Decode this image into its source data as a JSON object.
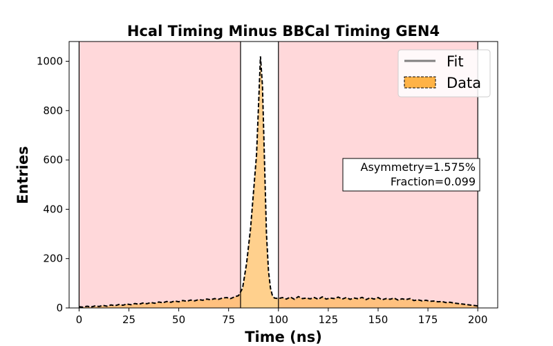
{
  "chart_data": {
    "type": "area",
    "title": "Hcal Timing Minus BBCal Timing GEN4",
    "xlabel": "Time (ns)",
    "ylabel": "Entries",
    "xlim": [
      -5,
      210
    ],
    "ylim": [
      0,
      1080
    ],
    "xticks": [
      0,
      25,
      50,
      75,
      100,
      125,
      150,
      175,
      200
    ],
    "yticks": [
      0,
      200,
      400,
      600,
      800,
      1000
    ],
    "grid": false,
    "legend": {
      "placement": "top-right",
      "entries": [
        {
          "label": "Fit",
          "style": "line",
          "color": "#808080"
        },
        {
          "label": "Data",
          "style": "filled-dashed",
          "color": "#ffb347"
        }
      ]
    },
    "shaded_regions": [
      {
        "x": [
          0,
          81
        ],
        "color": "#ffd8da"
      },
      {
        "x": [
          100,
          200
        ],
        "color": "#ffd8da"
      }
    ],
    "boundary_lines": [
      0,
      81,
      100,
      200
    ],
    "annotation": [
      "Asymmetry=1.575%",
      "Fraction=0.099"
    ],
    "series": [
      {
        "name": "Data",
        "x": [
          0,
          2,
          4,
          6,
          8,
          10,
          12,
          14,
          16,
          18,
          20,
          22,
          24,
          26,
          28,
          30,
          32,
          34,
          36,
          38,
          40,
          42,
          44,
          46,
          48,
          50,
          52,
          54,
          56,
          58,
          60,
          62,
          64,
          66,
          68,
          70,
          72,
          74,
          76,
          78,
          80,
          82,
          84,
          86,
          87,
          88,
          89,
          90,
          91,
          92,
          93,
          94,
          95,
          96,
          97,
          98,
          100,
          102,
          104,
          106,
          108,
          110,
          112,
          114,
          116,
          118,
          120,
          122,
          124,
          126,
          128,
          130,
          132,
          134,
          136,
          138,
          140,
          142,
          144,
          146,
          148,
          150,
          152,
          154,
          156,
          158,
          160,
          162,
          164,
          166,
          168,
          170,
          172,
          174,
          176,
          178,
          180,
          182,
          184,
          186,
          188,
          190,
          192,
          194,
          196,
          198,
          200
        ],
        "values": [
          5,
          3,
          7,
          4,
          8,
          6,
          10,
          7,
          12,
          9,
          14,
          11,
          16,
          13,
          18,
          15,
          20,
          17,
          22,
          19,
          24,
          21,
          26,
          23,
          28,
          25,
          30,
          27,
          32,
          29,
          34,
          31,
          36,
          33,
          38,
          35,
          40,
          42,
          38,
          45,
          50,
          80,
          180,
          320,
          420,
          520,
          620,
          820,
          1020,
          900,
          600,
          300,
          150,
          80,
          50,
          40,
          38,
          42,
          36,
          44,
          35,
          46,
          38,
          40,
          37,
          42,
          35,
          45,
          36,
          40,
          38,
          44,
          36,
          42,
          35,
          40,
          37,
          43,
          34,
          41,
          36,
          42,
          33,
          38,
          35,
          40,
          32,
          37,
          34,
          38,
          30,
          33,
          29,
          31,
          27,
          28,
          25,
          26,
          22,
          23,
          20,
          18,
          16,
          14,
          12,
          10,
          8
        ]
      }
    ]
  }
}
